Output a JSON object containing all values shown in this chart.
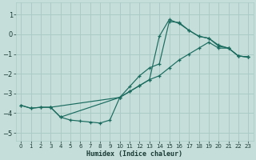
{
  "xlabel": "Humidex (Indice chaleur)",
  "xlim": [
    -0.5,
    23.5
  ],
  "ylim": [
    -5.4,
    1.6
  ],
  "xticks": [
    0,
    1,
    2,
    3,
    4,
    5,
    6,
    7,
    8,
    9,
    10,
    11,
    12,
    13,
    14,
    15,
    16,
    17,
    18,
    19,
    20,
    21,
    22,
    23
  ],
  "yticks": [
    -5,
    -4,
    -3,
    -2,
    -1,
    0,
    1
  ],
  "bg_color": "#c5deda",
  "grid_color": "#aacbc6",
  "line_color": "#1a6b5e",
  "line1_x": [
    0,
    1,
    2,
    3,
    10,
    11,
    12,
    13,
    14,
    15,
    16,
    17,
    18,
    19,
    20,
    21,
    22,
    23
  ],
  "line1_y": [
    -3.6,
    -3.75,
    -3.7,
    -3.7,
    -3.2,
    -2.9,
    -2.6,
    -2.3,
    -2.1,
    -1.7,
    -1.3,
    -1.0,
    -0.7,
    -0.4,
    -0.7,
    -0.7,
    -1.1,
    -1.15
  ],
  "line2_x": [
    0,
    1,
    2,
    3,
    4,
    5,
    6,
    7,
    8,
    9,
    10,
    11,
    12,
    13,
    14,
    15,
    16,
    17,
    18,
    19,
    20,
    21,
    22,
    23
  ],
  "line2_y": [
    -3.6,
    -3.75,
    -3.7,
    -3.7,
    -4.2,
    -4.35,
    -4.4,
    -4.45,
    -4.5,
    -4.35,
    -3.2,
    -2.65,
    -2.1,
    -1.7,
    -1.5,
    0.65,
    0.6,
    0.2,
    -0.1,
    -0.2,
    -0.6,
    -0.7,
    -1.1,
    -1.15
  ],
  "line3_x": [
    3,
    4,
    10,
    11,
    12,
    13,
    14,
    15,
    16,
    17,
    18,
    19,
    20,
    21,
    22,
    23
  ],
  "line3_y": [
    -3.7,
    -4.2,
    -3.2,
    -2.9,
    -2.6,
    -2.3,
    -0.1,
    0.75,
    0.55,
    0.2,
    -0.1,
    -0.2,
    -0.55,
    -0.7,
    -1.1,
    -1.15
  ]
}
